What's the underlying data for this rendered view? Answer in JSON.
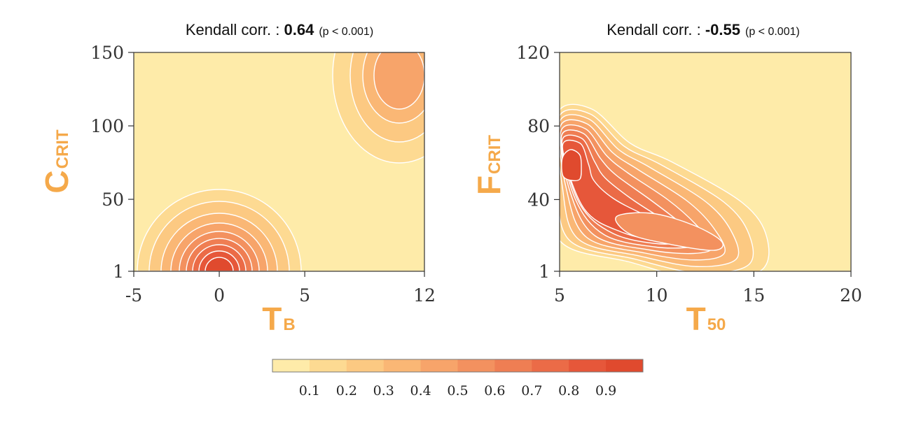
{
  "colorbar": {
    "ticks": [
      "0.1",
      "0.2",
      "0.3",
      "0.4",
      "0.5",
      "0.6",
      "0.7",
      "0.8",
      "0.9"
    ],
    "colors": [
      "#FEEBA9",
      "#FDDA92",
      "#FCC982",
      "#FAB775",
      "#F7A46A",
      "#F3915F",
      "#EF7E53",
      "#EB6B47",
      "#E6573A",
      "#E04A2E"
    ]
  },
  "chart_data": [
    {
      "type": "heatmap",
      "subtype": "2d-density-contour",
      "title_prefix": "Kendall corr. : ",
      "title_value": "0.64",
      "title_suffix": "(p < 0.001)",
      "xlabel_main": "T",
      "xlabel_sub": "B",
      "ylabel_main": "C",
      "ylabel_sub": "CRIT",
      "xlim": [
        -5,
        12
      ],
      "ylim": [
        1,
        150
      ],
      "xticks": [
        -5,
        0,
        5,
        12
      ],
      "yticks": [
        1,
        50,
        100,
        150
      ],
      "density_peaks": [
        {
          "x": 0,
          "y": 1,
          "max_level": 0.9
        },
        {
          "x": 11,
          "y": 135,
          "max_level": 0.4
        }
      ]
    },
    {
      "type": "heatmap",
      "subtype": "2d-density-contour",
      "title_prefix": "Kendall corr. : ",
      "title_value": "-0.55",
      "title_suffix": "(p < 0.001)",
      "xlabel_main": "T",
      "xlabel_sub": "50",
      "ylabel_main": "F",
      "ylabel_sub": "CRIT",
      "xlim": [
        5,
        20
      ],
      "ylim": [
        1,
        120
      ],
      "xticks": [
        5,
        10,
        15,
        20
      ],
      "yticks": [
        1,
        40,
        80,
        120
      ],
      "density_peaks": [
        {
          "x": 5.6,
          "y": 60,
          "max_level": 0.9
        },
        {
          "x": 11.2,
          "y": 23,
          "max_level": 0.5
        }
      ]
    }
  ]
}
